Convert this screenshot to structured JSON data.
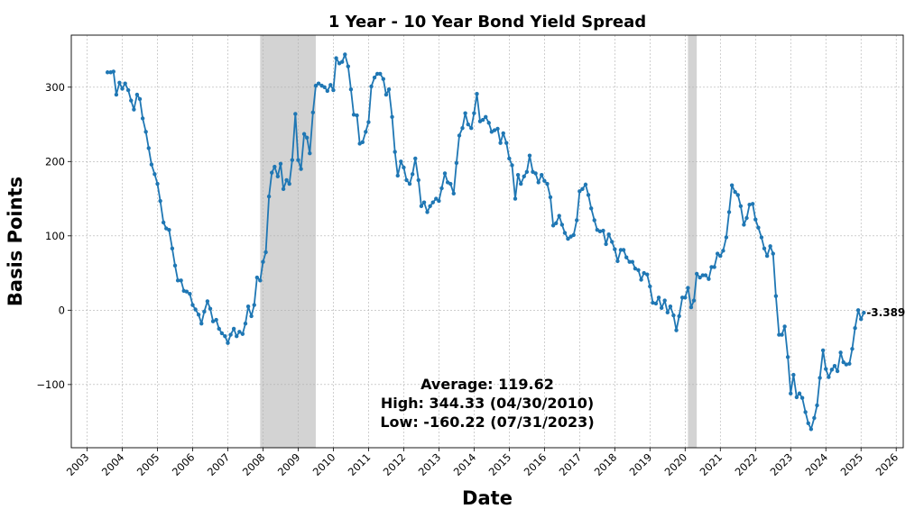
{
  "chart_data": {
    "type": "line",
    "title": "1 Year - 10 Year Bond Yield Spread",
    "xlabel": "Date",
    "ylabel": "Basis Points",
    "xlim": [
      2002.55,
      2026.2
    ],
    "ylim": [
      -185,
      370
    ],
    "x_ticks": [
      "2003",
      "2004",
      "2005",
      "2006",
      "2007",
      "2008",
      "2009",
      "2010",
      "2011",
      "2012",
      "2013",
      "2014",
      "2015",
      "2016",
      "2017",
      "2018",
      "2019",
      "2020",
      "2021",
      "2022",
      "2023",
      "2024",
      "2025",
      "2026"
    ],
    "y_ticks": [
      -100,
      0,
      100,
      200,
      300
    ],
    "grid": true,
    "recession_bands": [
      [
        2007.92,
        2009.5
      ],
      [
        2020.08,
        2020.33
      ]
    ],
    "series_color": "#1f77b4",
    "band_color": "#d3d3d3",
    "stats": {
      "average": "Average: 119.62",
      "high": "High: 344.33 (04/30/2010)",
      "low": "Low: -160.22 (07/31/2023)"
    },
    "last_value_label": "-3.389",
    "series": [
      {
        "x": [
          2003.58,
          2003.67,
          2003.75,
          2003.83,
          2003.92,
          2004.0,
          2004.08,
          2004.17,
          2004.25,
          2004.33,
          2004.42,
          2004.5,
          2004.58,
          2004.67,
          2004.75,
          2004.83,
          2004.92,
          2005.0,
          2005.08,
          2005.17,
          2005.25,
          2005.33,
          2005.42,
          2005.5,
          2005.58,
          2005.67,
          2005.75,
          2005.83,
          2005.92,
          2006.0,
          2006.08,
          2006.17,
          2006.25,
          2006.33,
          2006.42,
          2006.5,
          2006.58,
          2006.67,
          2006.75,
          2006.83,
          2006.92,
          2007.0,
          2007.08,
          2007.17,
          2007.25,
          2007.33,
          2007.42,
          2007.5,
          2007.58,
          2007.67,
          2007.75,
          2007.83,
          2007.92,
          2008.0,
          2008.08,
          2008.17,
          2008.25,
          2008.33,
          2008.42,
          2008.5,
          2008.58,
          2008.67,
          2008.75,
          2008.83,
          2008.92,
          2009.0,
          2009.08,
          2009.17,
          2009.25,
          2009.33,
          2009.42,
          2009.5,
          2009.58,
          2009.67,
          2009.75,
          2009.83,
          2009.92,
          2010.0,
          2010.08,
          2010.17,
          2010.25,
          2010.33,
          2010.42,
          2010.5,
          2010.58,
          2010.67,
          2010.75,
          2010.83,
          2010.92,
          2011.0,
          2011.08,
          2011.17,
          2011.25,
          2011.33,
          2011.42,
          2011.5,
          2011.58,
          2011.67,
          2011.75,
          2011.83,
          2011.92,
          2012.0,
          2012.08,
          2012.17,
          2012.25,
          2012.33,
          2012.42,
          2012.5,
          2012.58,
          2012.67,
          2012.75,
          2012.83,
          2012.92,
          2013.0,
          2013.08,
          2013.17,
          2013.25,
          2013.33,
          2013.42,
          2013.5,
          2013.58,
          2013.67,
          2013.75,
          2013.83,
          2013.92,
          2014.0,
          2014.08,
          2014.17,
          2014.25,
          2014.33,
          2014.42,
          2014.5,
          2014.58,
          2014.67,
          2014.75,
          2014.83,
          2014.92,
          2015.0,
          2015.08,
          2015.17,
          2015.25,
          2015.33,
          2015.42,
          2015.5,
          2015.58,
          2015.67,
          2015.75,
          2015.83,
          2015.92,
          2016.0,
          2016.08,
          2016.17,
          2016.25,
          2016.33,
          2016.42,
          2016.5,
          2016.58,
          2016.67,
          2016.75,
          2016.83,
          2016.92,
          2017.0,
          2017.08,
          2017.17,
          2017.25,
          2017.33,
          2017.42,
          2017.5,
          2017.58,
          2017.67,
          2017.75,
          2017.83,
          2017.92,
          2018.0,
          2018.08,
          2018.17,
          2018.25,
          2018.33,
          2018.42,
          2018.5,
          2018.58,
          2018.67,
          2018.75,
          2018.83,
          2018.92,
          2019.0,
          2019.08,
          2019.17,
          2019.25,
          2019.33,
          2019.42,
          2019.5,
          2019.58,
          2019.67,
          2019.75,
          2019.83,
          2019.92,
          2020.0,
          2020.08,
          2020.17,
          2020.25,
          2020.33,
          2020.42,
          2020.5,
          2020.58,
          2020.67,
          2020.75,
          2020.83,
          2020.92,
          2021.0,
          2021.08,
          2021.17,
          2021.25,
          2021.33,
          2021.42,
          2021.5,
          2021.58,
          2021.67,
          2021.75,
          2021.83,
          2021.92,
          2022.0,
          2022.08,
          2022.17,
          2022.25,
          2022.33,
          2022.42,
          2022.5,
          2022.58,
          2022.67,
          2022.75,
          2022.83,
          2022.92,
          2023.0,
          2023.08,
          2023.17,
          2023.25,
          2023.33,
          2023.42,
          2023.5,
          2023.58,
          2023.67,
          2023.75,
          2023.83,
          2023.92,
          2024.0,
          2024.08,
          2024.17,
          2024.25,
          2024.33,
          2024.42,
          2024.5,
          2024.58,
          2024.67,
          2024.75,
          2024.83,
          2024.92,
          2025.0,
          2025.08
        ],
        "y": [
          320,
          320,
          321,
          290,
          306,
          298,
          305,
          296,
          282,
          270,
          290,
          284,
          258,
          240,
          218,
          196,
          183,
          170,
          147,
          118,
          110,
          108,
          83,
          60,
          40,
          40,
          26,
          25,
          22,
          7,
          1,
          -6,
          -18,
          -2,
          12,
          2,
          -15,
          -13,
          -25,
          -31,
          -35,
          -44,
          -33,
          -25,
          -35,
          -29,
          -32,
          -18,
          5,
          -8,
          7,
          44,
          40,
          65,
          78,
          153,
          185,
          193,
          180,
          197,
          163,
          175,
          170,
          202,
          264,
          202,
          190,
          237,
          232,
          211,
          266,
          302,
          305,
          302,
          300,
          295,
          303,
          296,
          339,
          332,
          334,
          344,
          328,
          297,
          263,
          262,
          224,
          226,
          240,
          253,
          301,
          313,
          318,
          318,
          311,
          290,
          297,
          260,
          213,
          181,
          200,
          192,
          175,
          170,
          183,
          204,
          175,
          140,
          145,
          132,
          140,
          145,
          150,
          147,
          164,
          184,
          172,
          170,
          157,
          198,
          235,
          245,
          265,
          250,
          245,
          265,
          291,
          254,
          256,
          260,
          252,
          240,
          242,
          244,
          225,
          238,
          225,
          204,
          195,
          150,
          182,
          170,
          180,
          186,
          208,
          186,
          184,
          172,
          182,
          174,
          170,
          152,
          114,
          117,
          127,
          115,
          104,
          96,
          99,
          101,
          121,
          160,
          163,
          169,
          155,
          137,
          121,
          108,
          106,
          107,
          89,
          102,
          92,
          82,
          66,
          81,
          81,
          71,
          65,
          65,
          56,
          54,
          41,
          50,
          48,
          32,
          10,
          9,
          17,
          3,
          13,
          -3,
          5,
          -7,
          -27,
          -8,
          17,
          17,
          30,
          4,
          13,
          49,
          44,
          47,
          47,
          42,
          58,
          58,
          76,
          73,
          80,
          98,
          132,
          168,
          159,
          155,
          140,
          115,
          124,
          142,
          143,
          122,
          111,
          98,
          83,
          73,
          86,
          76,
          19,
          -33,
          -33,
          -22,
          -63,
          -112,
          -87,
          -117,
          -112,
          -118,
          -137,
          -152,
          -160,
          -145,
          -128,
          -91,
          -54,
          -79,
          -90,
          -80,
          -75,
          -82,
          -57,
          -70,
          -73,
          -72,
          -52,
          -24,
          0,
          -12,
          -3.389
        ]
      }
    ]
  }
}
